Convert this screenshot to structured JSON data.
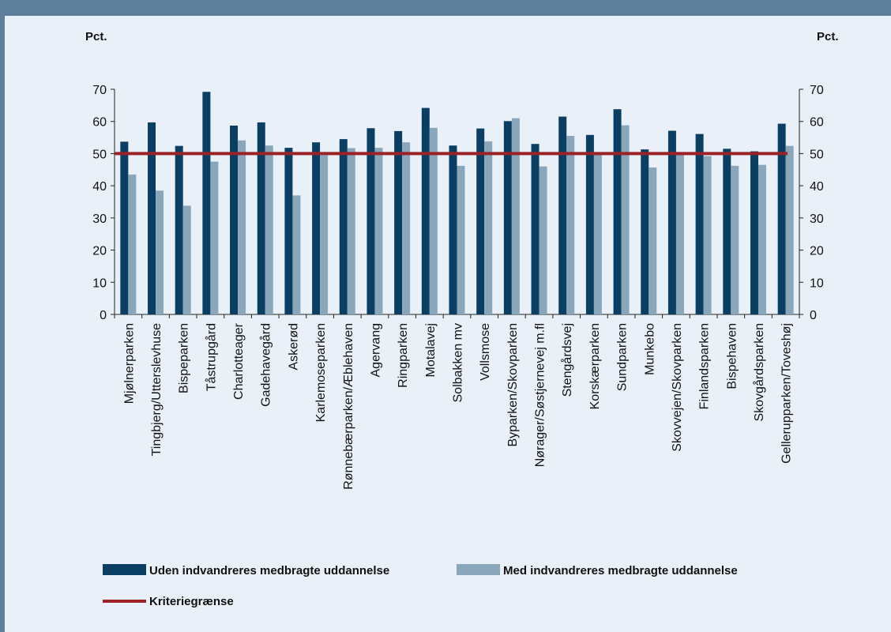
{
  "chart_data": {
    "type": "bar",
    "y_unit_left": "Pct.",
    "y_unit_right": "Pct.",
    "ylim": [
      0,
      70
    ],
    "yticks": [
      "0",
      "10",
      "20",
      "30",
      "40",
      "50",
      "60",
      "70"
    ],
    "categories": [
      "Mjølnerparken",
      "Tingbjerg/Utterslevhuse",
      "Bispeparken",
      "Tåstrupgård",
      "Charlotteager",
      "Gadehavegård",
      "Askerød",
      "Karlemoseparken",
      "Rønnebærparken/Æblehaven",
      "Agervang",
      "Ringparken",
      "Motalavej",
      "Solbakken mv",
      "Vollsmose",
      "Byparken/Skovparken",
      "Nørager/Søstjernevej m.fl",
      "Stengårdsvej",
      "Korskærparken",
      "Sundparken",
      "Munkebo",
      "Skovvejen/Skovparken",
      "Finlandsparken",
      "Bispehaven",
      "Skovgårdsparken",
      "Gellerupparken/Toveshøj"
    ],
    "series": [
      {
        "name": "Uden indvandreres medbragte uddannelse",
        "color": "#0b3e63",
        "values": [
          53.7,
          59.7,
          52.4,
          69.2,
          58.7,
          59.7,
          51.8,
          53.5,
          54.5,
          57.9,
          57.0,
          64.2,
          52.5,
          57.8,
          60.1,
          53.0,
          61.5,
          55.8,
          63.8,
          51.3,
          57.1,
          56.1,
          51.5,
          50.7,
          59.3
        ]
      },
      {
        "name": "Med indvandreres medbragte uddannelse",
        "color": "#8aa6bb",
        "values": [
          43.5,
          38.5,
          33.8,
          47.5,
          54.1,
          52.5,
          37.0,
          49.5,
          51.7,
          51.8,
          53.5,
          58.0,
          46.2,
          53.8,
          61.0,
          46.0,
          55.5,
          50.0,
          58.8,
          45.7,
          49.9,
          49.2,
          46.2,
          46.5,
          52.4
        ]
      }
    ],
    "reference_line": {
      "name": "Kriteriegrænse",
      "value": 50,
      "color": "#9b2226"
    },
    "legend_placement": "bottom"
  }
}
